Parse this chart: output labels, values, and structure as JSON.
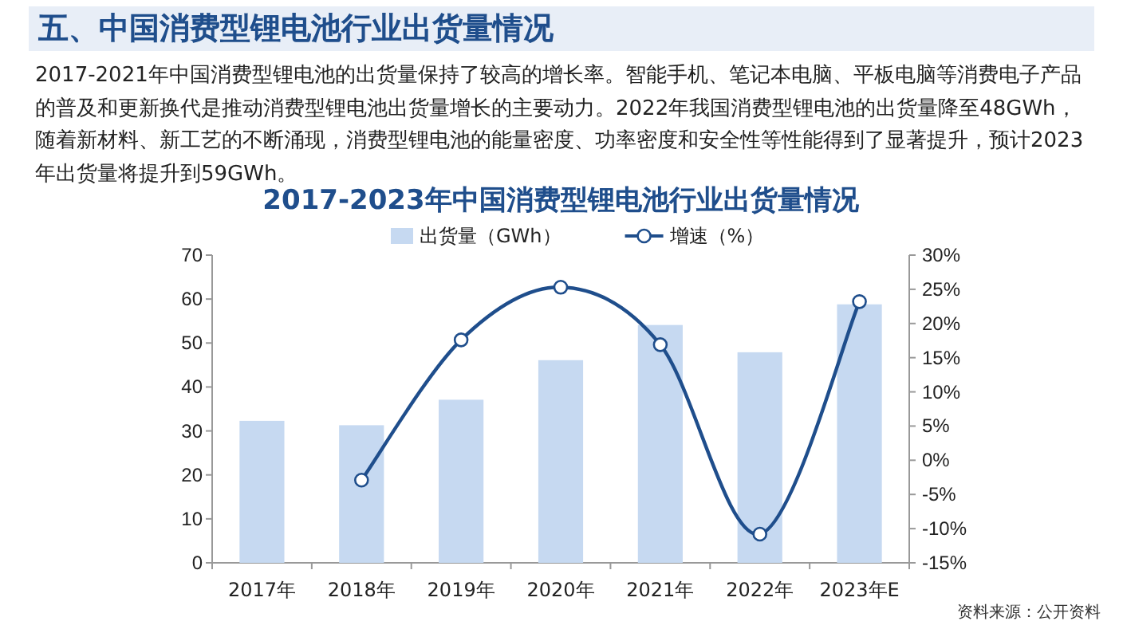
{
  "chart_data": {
    "type": "bar",
    "title": "2017-2023年中国消费型锂电池行业出货量情况",
    "annotations": [
      "五、中国消费型锂电池行业出货量情况",
      "2017-2021年中国消费型锂电池的出货量保持了较高的增长率。智能手机、笔记本电脑、平板电脑等消费电子产品的普及和更新换代是推动消费型锂电池出货量增长的主要动力。2022年我国消费型锂电池的出货量降至48GWh，随着新材料、新工艺的不断涌现，消费型锂电池的能量密度、功率密度和安全性等性能得到了显著提升，预计2023年出货量将提升到59GWh。",
      "资料来源：公开资料"
    ],
    "categories": [
      "2017年",
      "2018年",
      "2019年",
      "2020年",
      "2021年",
      "2022年",
      "2023年E"
    ],
    "series": [
      {
        "name": "出货量（GWh）",
        "color": "#c6d9f1",
        "values": [
          32.3,
          31.3,
          37.1,
          46.1,
          54.1,
          47.9,
          58.8
        ]
      },
      {
        "name": "增速（%）",
        "type": "line",
        "axis": "y2",
        "color": "#1f4e8c",
        "marker": "circle",
        "values": [
          null,
          -2.9,
          17.6,
          25.3,
          16.9,
          -10.8,
          23.2
        ]
      }
    ],
    "ylim": [
      0,
      70
    ],
    "yticks": [
      0,
      10,
      20,
      30,
      40,
      50,
      60,
      70
    ],
    "y2lim": [
      -15,
      30
    ],
    "y2ticks": [
      {
        "value": -15,
        "label": "-15%"
      },
      {
        "value": -10,
        "label": "-10%"
      },
      {
        "value": -5,
        "label": "-5%"
      },
      {
        "value": 0,
        "label": "0%"
      },
      {
        "value": 5,
        "label": "5%"
      },
      {
        "value": 10,
        "label": "10%"
      },
      {
        "value": 15,
        "label": "15%"
      },
      {
        "value": 20,
        "label": "20%"
      },
      {
        "value": 25,
        "label": "25%"
      },
      {
        "value": 30,
        "label": "30%"
      }
    ],
    "legend": "top",
    "grid": false
  }
}
